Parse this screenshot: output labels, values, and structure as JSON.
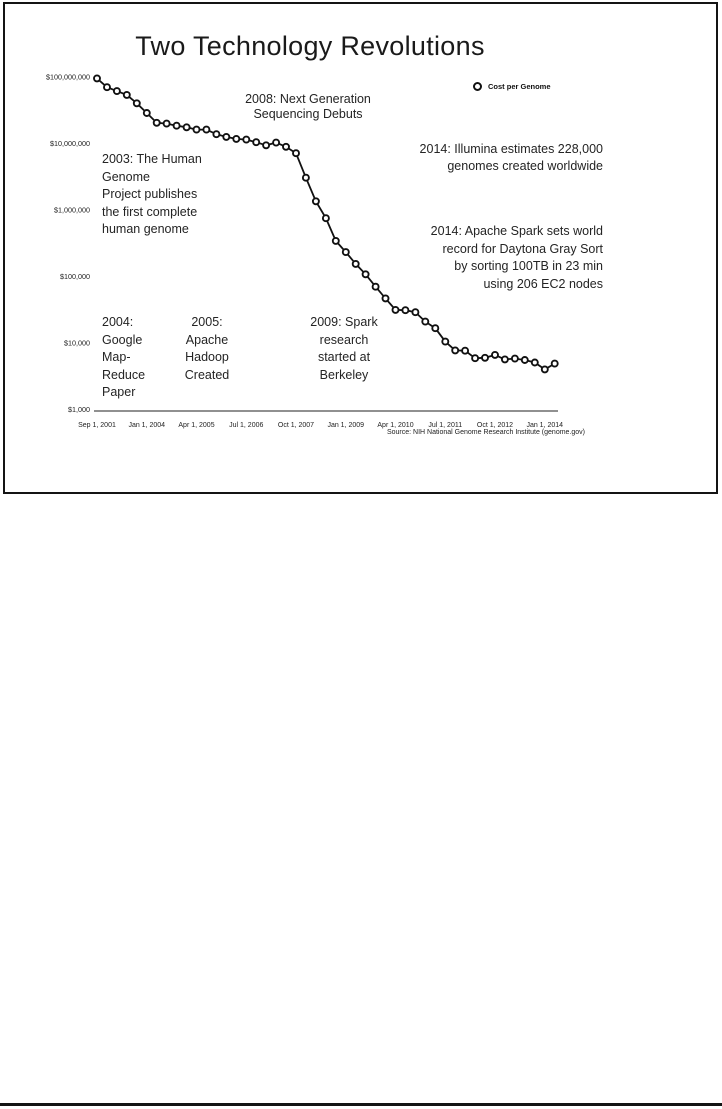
{
  "page": {
    "slide_title": "Two Technology Revolutions",
    "source_note": "Source: NIH National Genome Research Institute (genome.gov)"
  },
  "legend": {
    "label": "Cost per Genome"
  },
  "annotations": {
    "ngs_2008": "2008: Next Generation\nSequencing Debuts",
    "hgp_2003": "2003: The Human\nGenome\nProject publishes\nthe first complete\nhuman genome",
    "illumina_2014": "2014: Illumina estimates 228,000\ngenomes created worldwide",
    "spark_record_2014": "2014: Apache Spark sets world\nrecord for Daytona Gray Sort\nby sorting 100TB in 23 min\nusing 206 EC2 nodes",
    "mapreduce_2004": "2004:\nGoogle\nMap-\nReduce\nPaper",
    "hadoop_2005": "2005:\nApache\nHadoop\nCreated",
    "spark_2009": "2009: Spark\nresearch\nstarted at\nBerkeley"
  },
  "chart_data": {
    "type": "line",
    "title": "Two Technology Revolutions",
    "legend_entries": [
      "Cost per Genome"
    ],
    "legend_position": "top-right",
    "grid": false,
    "marker": "open-circle",
    "line_color": "#111111",
    "y_axis": {
      "scale": "log",
      "unit": "USD",
      "range": [
        1000,
        100000000
      ],
      "ticks": [
        {
          "label": "$100,000,000",
          "value": 100000000
        },
        {
          "label": "$10,000,000",
          "value": 10000000
        },
        {
          "label": "$1,000,000",
          "value": 1000000
        },
        {
          "label": "$100,000",
          "value": 100000
        },
        {
          "label": "$10,000",
          "value": 10000
        },
        {
          "label": "$1,000",
          "value": 1000
        }
      ]
    },
    "x_axis": {
      "type": "category",
      "ticks": [
        {
          "label": "Sep 1, 2001",
          "index": 0
        },
        {
          "label": "Jan 1, 2004",
          "index": 5
        },
        {
          "label": "Apr 1, 2005",
          "index": 10
        },
        {
          "label": "Jul 1, 2006",
          "index": 15
        },
        {
          "label": "Oct 1, 2007",
          "index": 20
        },
        {
          "label": "Jan 1, 2009",
          "index": 25
        },
        {
          "label": "Apr 1, 2010",
          "index": 30
        },
        {
          "label": "Jul 1, 2011",
          "index": 35
        },
        {
          "label": "Oct 1, 2012",
          "index": 40
        },
        {
          "label": "Jan 1, 2014",
          "index": 45
        }
      ]
    },
    "series": [
      {
        "name": "Cost per Genome",
        "points": [
          {
            "date": "Sep 2001",
            "cost_usd": 95263072
          },
          {
            "date": "Mar 2002",
            "cost_usd": 70175437
          },
          {
            "date": "Sep 2002",
            "cost_usd": 61448422
          },
          {
            "date": "Mar 2003",
            "cost_usd": 53751684
          },
          {
            "date": "Oct 2003",
            "cost_usd": 40157554
          },
          {
            "date": "Jan 2004",
            "cost_usd": 28780376
          },
          {
            "date": "Apr 2004",
            "cost_usd": 20442576
          },
          {
            "date": "Jul 2004",
            "cost_usd": 19934346
          },
          {
            "date": "Oct 2004",
            "cost_usd": 18519312
          },
          {
            "date": "Jan 2005",
            "cost_usd": 17534970
          },
          {
            "date": "Apr 2005",
            "cost_usd": 16159699
          },
          {
            "date": "Jul 2005",
            "cost_usd": 16180224
          },
          {
            "date": "Oct 2005",
            "cost_usd": 13801124
          },
          {
            "date": "Jan 2006",
            "cost_usd": 12585659
          },
          {
            "date": "Apr 2006",
            "cost_usd": 11732535
          },
          {
            "date": "Jul 2006",
            "cost_usd": 11455315
          },
          {
            "date": "Oct 2006",
            "cost_usd": 10474556
          },
          {
            "date": "Jan 2007",
            "cost_usd": 9408739
          },
          {
            "date": "Apr 2007",
            "cost_usd": 10314811
          },
          {
            "date": "Jul 2007",
            "cost_usd": 8927342
          },
          {
            "date": "Oct 2007",
            "cost_usd": 7147571
          },
          {
            "date": "Jan 2008",
            "cost_usd": 3063820
          },
          {
            "date": "Apr 2008",
            "cost_usd": 1352982
          },
          {
            "date": "Jul 2008",
            "cost_usd": 752080
          },
          {
            "date": "Oct 2008",
            "cost_usd": 342502
          },
          {
            "date": "Jan 2009",
            "cost_usd": 232735
          },
          {
            "date": "Apr 2009",
            "cost_usd": 154714
          },
          {
            "date": "Jul 2009",
            "cost_usd": 108065
          },
          {
            "date": "Oct 2009",
            "cost_usd": 70333
          },
          {
            "date": "Jan 2010",
            "cost_usd": 46774
          },
          {
            "date": "Apr 2010",
            "cost_usd": 31512
          },
          {
            "date": "Jul 2010",
            "cost_usd": 31125
          },
          {
            "date": "Oct 2010",
            "cost_usd": 29092
          },
          {
            "date": "Jan 2011",
            "cost_usd": 20963
          },
          {
            "date": "Apr 2011",
            "cost_usd": 16712
          },
          {
            "date": "Jul 2011",
            "cost_usd": 10497
          },
          {
            "date": "Oct 2011",
            "cost_usd": 7743
          },
          {
            "date": "Jan 2012",
            "cost_usd": 7666
          },
          {
            "date": "Apr 2012",
            "cost_usd": 5901
          },
          {
            "date": "Jul 2012",
            "cost_usd": 5985
          },
          {
            "date": "Oct 2012",
            "cost_usd": 6618
          },
          {
            "date": "Jan 2013",
            "cost_usd": 5671
          },
          {
            "date": "Apr 2013",
            "cost_usd": 5826
          },
          {
            "date": "Jul 2013",
            "cost_usd": 5550
          },
          {
            "date": "Oct 2013",
            "cost_usd": 5096
          },
          {
            "date": "Jan 2014",
            "cost_usd": 4008
          },
          {
            "date": "Apr 2014",
            "cost_usd": 4905
          }
        ]
      }
    ]
  }
}
